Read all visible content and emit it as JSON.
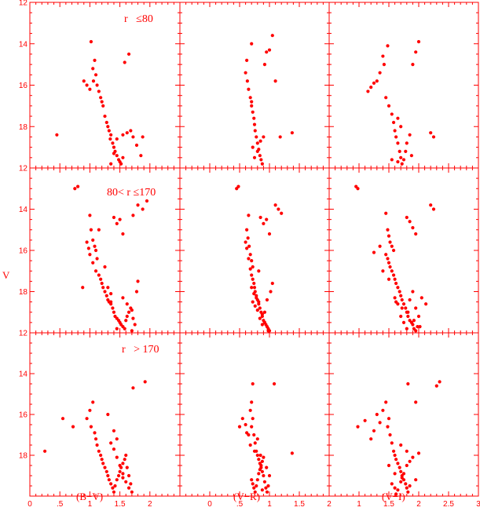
{
  "ylabel": "V",
  "columns": [
    {
      "xlabel": "(B−V)",
      "xlim": [
        0,
        2.5
      ],
      "xticks": [
        "0",
        ".5",
        "1",
        "1.5",
        "2"
      ],
      "xtickvals": [
        0,
        0.5,
        1,
        1.5,
        2
      ]
    },
    {
      "xlabel": "(V−R)",
      "xlim": [
        -0.5,
        2.0
      ],
      "xticks": [
        "0",
        ".5",
        "1",
        "1.5",
        "2"
      ],
      "xtickvals": [
        0,
        0.5,
        1,
        1.5,
        2
      ]
    },
    {
      "xlabel": "(V−I)",
      "xlim": [
        0.5,
        3.0
      ],
      "xticks": [
        "1",
        "1.5",
        "2",
        "2.5",
        "3"
      ],
      "xtickvals": [
        1,
        1.5,
        2,
        2.5,
        3
      ]
    }
  ],
  "rows": [
    {
      "annotation": "r   ≤80"
    },
    {
      "annotation": "80< r ≤170"
    },
    {
      "annotation": "r   > 170"
    }
  ],
  "ylim": [
    12,
    20
  ],
  "yticks": [
    "12",
    "14",
    "16",
    "18"
  ],
  "ytickvals": [
    12,
    14,
    16,
    18
  ],
  "colors": {
    "points": "#ff0000",
    "frame": "#ff0000"
  },
  "chart_data": [
    {
      "type": "scatter",
      "panel": "r<=80, B-V",
      "x": [
        1.02,
        1.08,
        1.05,
        1.1,
        1.06,
        1.12,
        1.15,
        1.18,
        1.2,
        0.9,
        0.95,
        1.0,
        1.22,
        1.25,
        1.28,
        1.3,
        1.32,
        1.35,
        1.34,
        1.38,
        1.4,
        1.42,
        1.45,
        1.48,
        1.5,
        1.52,
        1.55,
        1.45,
        1.55,
        1.62,
        1.68,
        1.72,
        1.78,
        1.85,
        1.88,
        0.45,
        1.58,
        1.65,
        1.4,
        1.35
      ],
      "y": [
        13.9,
        14.8,
        15.2,
        15.5,
        15.8,
        16.0,
        16.3,
        16.6,
        16.8,
        15.8,
        16.0,
        16.2,
        17.0,
        17.5,
        17.8,
        18.0,
        18.2,
        18.4,
        18.6,
        18.8,
        19.0,
        19.2,
        19.4,
        19.6,
        19.7,
        19.8,
        19.5,
        18.6,
        18.4,
        18.3,
        18.2,
        18.5,
        18.9,
        19.4,
        18.5,
        18.4,
        14.9,
        14.5,
        19.3,
        19.8
      ]
    },
    {
      "type": "scatter",
      "panel": "r<=80, V-R",
      "x": [
        0.7,
        0.62,
        0.6,
        0.63,
        0.65,
        0.68,
        0.7,
        0.72,
        0.74,
        0.75,
        0.76,
        0.78,
        0.8,
        0.82,
        0.84,
        0.86,
        0.88,
        0.9,
        0.72,
        0.75,
        0.8,
        0.85,
        0.92,
        0.95,
        1.0,
        1.05,
        1.18,
        1.38,
        1.1,
        0.7
      ],
      "y": [
        14.0,
        14.8,
        15.4,
        15.8,
        16.2,
        16.6,
        17.0,
        17.3,
        17.6,
        17.9,
        18.2,
        18.5,
        18.8,
        19.1,
        19.4,
        19.6,
        19.8,
        18.5,
        19.0,
        19.5,
        19.2,
        18.7,
        15.0,
        14.4,
        14.3,
        13.6,
        18.5,
        18.3,
        15.8,
        16.8
      ]
    },
    {
      "type": "scatter",
      "panel": "r<=80, V-I",
      "x": [
        1.48,
        1.4,
        1.42,
        1.35,
        1.3,
        1.25,
        1.2,
        1.15,
        1.45,
        1.5,
        1.55,
        1.58,
        1.6,
        1.62,
        1.65,
        1.68,
        1.7,
        1.72,
        1.75,
        1.78,
        1.8,
        1.85,
        1.88,
        1.55,
        1.65,
        1.9,
        1.95,
        2.0,
        2.2,
        2.25,
        1.65,
        1.7
      ],
      "y": [
        14.1,
        14.6,
        15.0,
        15.4,
        15.8,
        15.9,
        16.1,
        16.3,
        16.6,
        17.0,
        17.4,
        17.8,
        18.2,
        18.5,
        18.8,
        19.2,
        19.5,
        19.8,
        19.6,
        19.2,
        18.8,
        18.4,
        19.4,
        19.6,
        19.7,
        15.0,
        14.4,
        13.9,
        18.3,
        18.5,
        17.6,
        18.0
      ]
    },
    {
      "type": "scatter",
      "panel": "80<r<=170, B-V",
      "x": [
        0.75,
        0.8,
        1.0,
        1.02,
        1.05,
        1.08,
        1.1,
        1.12,
        0.95,
        0.98,
        1.0,
        1.05,
        1.1,
        1.15,
        1.18,
        1.2,
        1.22,
        1.25,
        1.28,
        1.3,
        1.32,
        1.35,
        1.38,
        1.4,
        1.42,
        1.45,
        1.48,
        1.5,
        1.52,
        1.55,
        1.58,
        1.6,
        1.62,
        1.65,
        1.68,
        1.7,
        1.72,
        1.75,
        1.78,
        1.8,
        1.4,
        1.45,
        1.5,
        1.55,
        1.72,
        1.8,
        1.88,
        1.95,
        1.3,
        1.35,
        0.88,
        1.15,
        1.25,
        1.35,
        1.45,
        1.55,
        1.62,
        1.7
      ],
      "y": [
        13.0,
        12.9,
        14.3,
        15.0,
        15.5,
        15.8,
        16.0,
        16.4,
        15.6,
        15.9,
        16.2,
        16.6,
        17.0,
        17.2,
        17.4,
        17.6,
        17.8,
        18.0,
        18.2,
        18.4,
        18.5,
        18.6,
        18.8,
        19.0,
        19.2,
        19.3,
        19.4,
        19.5,
        19.6,
        19.7,
        19.8,
        19.4,
        19.2,
        19.0,
        18.8,
        18.9,
        19.3,
        19.6,
        18.0,
        17.5,
        14.4,
        14.7,
        14.5,
        15.2,
        14.3,
        13.8,
        14.0,
        13.6,
        17.8,
        18.1,
        17.8,
        15.0,
        16.8,
        18.5,
        19.8,
        18.3,
        18.6,
        19.9
      ]
    },
    {
      "type": "scatter",
      "panel": "80<r<=170, V-R",
      "x": [
        0.45,
        0.48,
        0.65,
        0.62,
        0.64,
        0.66,
        0.68,
        0.7,
        0.72,
        0.6,
        0.62,
        0.65,
        0.68,
        0.7,
        0.72,
        0.74,
        0.75,
        0.76,
        0.78,
        0.8,
        0.82,
        0.84,
        0.86,
        0.88,
        0.9,
        0.92,
        0.94,
        0.96,
        0.98,
        1.0,
        0.72,
        0.76,
        0.8,
        0.84,
        0.88,
        0.92,
        0.96,
        1.02,
        1.05,
        0.85,
        0.9,
        0.95,
        1.0,
        1.1,
        1.15,
        1.2,
        0.7,
        0.74,
        0.78,
        0.82,
        0.88,
        0.92,
        0.98,
        0.82
      ],
      "y": [
        13.0,
        12.9,
        14.3,
        15.0,
        15.4,
        15.8,
        16.2,
        16.5,
        16.8,
        15.6,
        15.9,
        16.4,
        16.9,
        17.2,
        17.4,
        17.6,
        17.8,
        18.0,
        18.2,
        18.4,
        18.6,
        18.8,
        19.0,
        19.2,
        19.4,
        19.5,
        19.6,
        19.7,
        19.8,
        19.9,
        18.5,
        18.7,
        18.9,
        19.3,
        19.6,
        19.0,
        18.4,
        18.0,
        17.6,
        14.4,
        14.7,
        14.5,
        15.2,
        13.8,
        14.0,
        14.2,
        17.8,
        18.1,
        18.3,
        18.5,
        19.1,
        19.5,
        19.9,
        17.0
      ]
    },
    {
      "type": "scatter",
      "panel": "80<r<=170, V-I",
      "x": [
        0.95,
        0.98,
        1.45,
        1.48,
        1.5,
        1.52,
        1.55,
        1.58,
        1.45,
        1.48,
        1.5,
        1.52,
        1.55,
        1.58,
        1.6,
        1.62,
        1.65,
        1.68,
        1.7,
        1.72,
        1.75,
        1.78,
        1.8,
        1.82,
        1.85,
        1.88,
        1.9,
        1.92,
        1.95,
        1.98,
        1.6,
        1.65,
        1.7,
        1.75,
        1.8,
        1.85,
        1.9,
        1.95,
        2.0,
        2.05,
        1.8,
        1.85,
        1.9,
        1.95,
        2.2,
        2.25,
        1.25,
        1.35,
        1.4,
        1.5,
        1.62,
        1.72,
        1.82,
        1.92,
        2.02,
        2.12
      ],
      "y": [
        12.9,
        13.0,
        14.2,
        15.0,
        15.3,
        15.6,
        15.8,
        16.0,
        16.2,
        16.4,
        16.6,
        16.8,
        17.0,
        17.2,
        17.4,
        17.6,
        17.8,
        18.0,
        18.2,
        18.4,
        18.6,
        18.8,
        19.0,
        19.2,
        19.4,
        19.5,
        19.6,
        19.8,
        19.9,
        19.7,
        18.3,
        18.6,
        19.2,
        19.5,
        19.8,
        18.4,
        18.0,
        18.8,
        19.2,
        18.3,
        14.4,
        14.6,
        14.9,
        15.2,
        13.8,
        14.0,
        16.1,
        15.8,
        17.0,
        17.4,
        18.5,
        18.8,
        19.0,
        19.4,
        19.7,
        18.6
      ]
    },
    {
      "type": "scatter",
      "panel": "r>170, B-V",
      "x": [
        1.05,
        1.0,
        0.95,
        1.02,
        1.08,
        1.1,
        1.12,
        1.15,
        1.18,
        1.2,
        1.22,
        1.25,
        1.28,
        1.3,
        1.32,
        1.35,
        1.38,
        1.4,
        1.42,
        1.45,
        1.48,
        1.5,
        1.52,
        1.55,
        1.58,
        1.6,
        1.62,
        1.65,
        1.68,
        1.7,
        1.35,
        1.4,
        1.45,
        1.5,
        1.55,
        1.6,
        1.65,
        0.55,
        0.72,
        0.25,
        1.92,
        1.72,
        1.4,
        1.3,
        1.45,
        1.55
      ],
      "y": [
        15.4,
        15.8,
        16.2,
        16.6,
        16.9,
        17.2,
        17.5,
        17.8,
        18.0,
        18.2,
        18.4,
        18.6,
        18.8,
        19.0,
        19.2,
        19.4,
        19.6,
        19.8,
        19.5,
        19.2,
        19.0,
        18.8,
        18.6,
        18.4,
        18.2,
        18.0,
        18.6,
        19.0,
        19.4,
        19.8,
        17.4,
        17.7,
        18.1,
        18.5,
        18.9,
        19.3,
        19.6,
        16.2,
        16.6,
        17.8,
        14.4,
        14.7,
        16.8,
        16.0,
        17.2,
        19.1
      ]
    },
    {
      "type": "scatter",
      "panel": "r>170, V-R",
      "x": [
        0.7,
        0.68,
        0.72,
        0.7,
        0.74,
        0.76,
        0.78,
        0.8,
        0.82,
        0.84,
        0.86,
        0.88,
        0.9,
        0.7,
        0.72,
        0.74,
        0.76,
        0.78,
        0.8,
        0.82,
        0.84,
        0.86,
        0.88,
        0.9,
        0.92,
        0.94,
        0.96,
        0.98,
        0.6,
        0.65,
        0.75,
        0.85,
        0.95,
        1.0,
        1.38,
        1.08,
        0.72,
        0.5,
        0.55,
        0.62,
        0.68,
        0.8,
        0.88
      ],
      "y": [
        15.4,
        15.8,
        16.2,
        16.6,
        17.0,
        17.4,
        17.8,
        18.0,
        18.2,
        18.4,
        18.6,
        18.8,
        19.0,
        19.2,
        19.4,
        19.6,
        19.8,
        19.5,
        19.2,
        18.9,
        18.7,
        18.5,
        18.3,
        18.1,
        19.3,
        19.6,
        19.8,
        19.5,
        16.5,
        17.0,
        17.8,
        18.0,
        18.6,
        19.0,
        17.9,
        14.5,
        14.5,
        16.6,
        16.2,
        16.9,
        17.5,
        17.2,
        19.7
      ]
    },
    {
      "type": "scatter",
      "panel": "r>170, V-I",
      "x": [
        1.45,
        1.4,
        1.5,
        1.48,
        1.52,
        1.55,
        1.58,
        1.6,
        1.62,
        1.65,
        1.68,
        1.7,
        1.72,
        1.75,
        1.78,
        1.8,
        1.82,
        1.85,
        1.55,
        1.6,
        1.65,
        1.7,
        1.75,
        1.8,
        1.85,
        1.9,
        1.95,
        2.0,
        1.3,
        1.35,
        1.25,
        1.95,
        1.82,
        2.3,
        2.35,
        1.5,
        1.6,
        1.7,
        1.8,
        0.98,
        1.1,
        1.2,
        1.62,
        1.72
      ],
      "y": [
        15.4,
        15.8,
        16.2,
        16.6,
        17.0,
        17.4,
        17.8,
        18.0,
        18.2,
        18.4,
        18.6,
        18.8,
        19.0,
        19.2,
        19.4,
        19.6,
        19.8,
        19.5,
        19.4,
        19.6,
        19.7,
        19.3,
        18.9,
        18.5,
        18.3,
        18.1,
        19.2,
        17.9,
        16.0,
        16.4,
        16.8,
        15.4,
        14.5,
        14.6,
        14.4,
        18.5,
        18.9,
        17.5,
        17.8,
        16.6,
        16.3,
        17.2,
        19.9,
        19.1
      ]
    }
  ]
}
